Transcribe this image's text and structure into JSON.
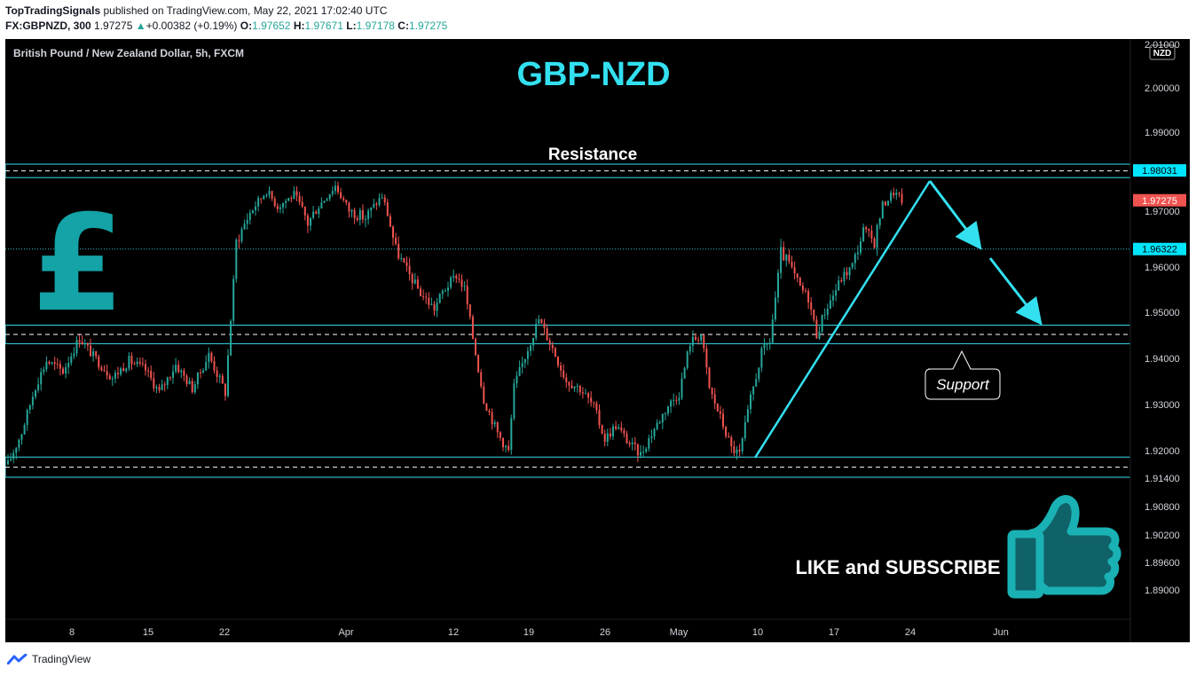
{
  "header": {
    "publisher": "TopTradingSignals",
    "published_text": "published on TradingView.com, May 22, 2021 17:02:40 UTC",
    "symbol_interval": "FX:GBPNZD, 300",
    "last": "1.97275",
    "change_arrow": "▲",
    "change": "+0.00382 (+0.19%)",
    "o_label": "O:",
    "o_value": "1.97652",
    "h_label": "H:",
    "h_value": "1.97671",
    "l_label": "L:",
    "l_value": "1.97178",
    "c_label": "C:",
    "c_value": "1.97275"
  },
  "chart_data": {
    "type": "candlestick",
    "instrument": "British Pound / New Zealand Dollar, 5h, FXCM",
    "title": "GBP-NZD",
    "currency_badge": "NZD",
    "yaxis_labels": [
      "2.01000",
      "2.00000",
      "1.99000",
      "1.97000",
      "1.96000",
      "1.95000",
      "1.94000",
      "1.93000",
      "1.92000",
      "1.91400",
      "1.90800",
      "1.90200",
      "1.89600",
      "1.89000"
    ],
    "xaxis_labels": [
      "8",
      "15",
      "22",
      "Apr",
      "12",
      "19",
      "26",
      "May",
      "10",
      "17",
      "24",
      "Jun"
    ],
    "current_price": "1.97275",
    "price_tags": [
      "1.98031",
      "1.96322"
    ],
    "resistance_zone": [
      1.9785,
      1.9819
    ],
    "mid_zone": [
      1.9432,
      1.9472
    ],
    "support_zone": [
      1.9142,
      1.9186
    ],
    "annotations": {
      "resistance": "Resistance",
      "support": "Support",
      "cta": "LIKE and SUBSCRIBE"
    },
    "colors": {
      "up": "#26a69a",
      "down": "#ef5350",
      "accent": "#33e0f0",
      "icon": "#14a3a6",
      "background": "#000000"
    },
    "price_path": [
      [
        0,
        1.917
      ],
      [
        5,
        1.924
      ],
      [
        10,
        1.934
      ],
      [
        14,
        1.9395
      ],
      [
        20,
        1.9372
      ],
      [
        26,
        1.9445
      ],
      [
        31,
        1.9405
      ],
      [
        38,
        1.9358
      ],
      [
        44,
        1.9395
      ],
      [
        50,
        1.9375
      ],
      [
        55,
        1.9326
      ],
      [
        61,
        1.9387
      ],
      [
        67,
        1.9335
      ],
      [
        73,
        1.9408
      ],
      [
        79,
        1.9326
      ],
      [
        83,
        1.9645
      ],
      [
        87,
        1.9688
      ],
      [
        94,
        1.9752
      ],
      [
        98,
        1.9712
      ],
      [
        104,
        1.9742
      ],
      [
        109,
        1.9678
      ],
      [
        114,
        1.9722
      ],
      [
        119,
        1.9765
      ],
      [
        124,
        1.9702
      ],
      [
        130,
        1.9688
      ],
      [
        136,
        1.9738
      ],
      [
        141,
        1.9632
      ],
      [
        145,
        1.9592
      ],
      [
        150,
        1.9542
      ],
      [
        155,
        1.9508
      ],
      [
        158,
        1.9545
      ],
      [
        163,
        1.9582
      ],
      [
        166,
        1.9552
      ],
      [
        169,
        1.9445
      ],
      [
        173,
        1.9312
      ],
      [
        178,
        1.9238
      ],
      [
        182,
        1.9198
      ],
      [
        184,
        1.9338
      ],
      [
        189,
        1.9422
      ],
      [
        193,
        1.9485
      ],
      [
        198,
        1.9422
      ],
      [
        203,
        1.9352
      ],
      [
        208,
        1.9335
      ],
      [
        213,
        1.9295
      ],
      [
        217,
        1.9225
      ],
      [
        221,
        1.9255
      ],
      [
        226,
        1.9215
      ],
      [
        230,
        1.9192
      ],
      [
        235,
        1.9248
      ],
      [
        240,
        1.9298
      ],
      [
        244,
        1.9325
      ],
      [
        248,
        1.9435
      ],
      [
        252,
        1.9452
      ],
      [
        255,
        1.9335
      ],
      [
        259,
        1.9272
      ],
      [
        263,
        1.9205
      ],
      [
        266,
        1.9192
      ],
      [
        270,
        1.9312
      ],
      [
        274,
        1.9412
      ],
      [
        277,
        1.9438
      ],
      [
        281,
        1.9625
      ],
      [
        284,
        1.9605
      ],
      [
        288,
        1.9555
      ],
      [
        291,
        1.9532
      ],
      [
        294,
        1.9452
      ],
      [
        297,
        1.9502
      ],
      [
        300,
        1.9538
      ],
      [
        303,
        1.9575
      ],
      [
        307,
        1.9602
      ],
      [
        311,
        1.9665
      ],
      [
        315,
        1.9645
      ],
      [
        318,
        1.9715
      ],
      [
        322,
        1.9748
      ],
      [
        325,
        1.9728
      ]
    ]
  }
}
